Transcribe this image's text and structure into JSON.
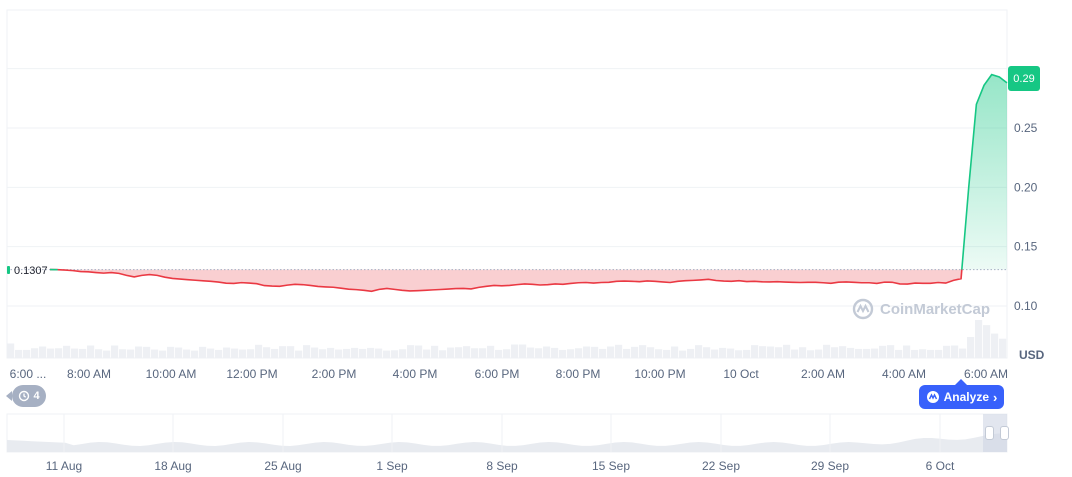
{
  "chart_data": {
    "type": "area",
    "currency_label": "USD",
    "current_price": "0.29",
    "reference_price": "0.1307",
    "ylim": [
      0.09,
      0.32
    ],
    "y_ticks": [
      "0.10",
      "0.15",
      "0.20",
      "0.25"
    ],
    "x_ticks": [
      "6:00 ...",
      "8:00 AM",
      "10:00 AM",
      "12:00 PM",
      "2:00 PM",
      "4:00 PM",
      "6:00 PM",
      "8:00 PM",
      "10:00 PM",
      "10 Oct",
      "2:00 AM",
      "4:00 AM",
      "6:00 AM"
    ],
    "nav_ticks": [
      "11 Aug",
      "18 Aug",
      "25 Aug",
      "1 Sep",
      "8 Sep",
      "15 Sep",
      "22 Sep",
      "29 Sep",
      "6 Oct"
    ],
    "series": [
      {
        "values": [
          0.1307,
          0.1306,
          0.1303,
          0.1298,
          0.129,
          0.1288,
          0.1282,
          0.1277,
          0.1282,
          0.1275,
          0.1258,
          0.1245,
          0.1258,
          0.1265,
          0.1258,
          0.1243,
          0.1232,
          0.1227,
          0.1222,
          0.1217,
          0.1212,
          0.1208,
          0.1202,
          0.1192,
          0.119,
          0.1197,
          0.1193,
          0.1188,
          0.1172,
          0.1168,
          0.1166,
          0.1176,
          0.1183,
          0.118,
          0.1173,
          0.1165,
          0.1161,
          0.1158,
          0.115,
          0.1142,
          0.1138,
          0.1132,
          0.1124,
          0.114,
          0.1148,
          0.114,
          0.1132,
          0.1127,
          0.1129,
          0.1132,
          0.1136,
          0.1139,
          0.1143,
          0.1147,
          0.1148,
          0.1144,
          0.1157,
          0.1166,
          0.1173,
          0.117,
          0.1173,
          0.118,
          0.1186,
          0.1183,
          0.1177,
          0.118,
          0.1186,
          0.1183,
          0.119,
          0.1196,
          0.1198,
          0.1193,
          0.1198,
          0.12,
          0.1208,
          0.121,
          0.1208,
          0.1205,
          0.1211,
          0.1208,
          0.1203,
          0.1198,
          0.1208,
          0.1213,
          0.1216,
          0.122,
          0.1225,
          0.1215,
          0.121,
          0.1208,
          0.1213,
          0.1206,
          0.1208,
          0.1204,
          0.1203,
          0.1205,
          0.1202,
          0.12,
          0.1198,
          0.12,
          0.12,
          0.1196,
          0.1191,
          0.1201,
          0.1203,
          0.12,
          0.1196,
          0.1196,
          0.119,
          0.1201,
          0.12,
          0.1186,
          0.1185,
          0.1193,
          0.1191,
          0.1191,
          0.1198,
          0.1193,
          0.1216,
          0.123,
          0.2,
          0.27,
          0.286,
          0.295,
          0.293,
          0.288
        ]
      }
    ],
    "volume_bars": [
      0.31,
      0.12,
      0.12,
      0.17,
      0.22,
      0.16,
      0.17,
      0.24,
      0.16,
      0.15,
      0.25,
      0.14,
      0.1,
      0.25,
      0.14,
      0.13,
      0.22,
      0.21,
      0.13,
      0.1,
      0.21,
      0.19,
      0.13,
      0.1,
      0.21,
      0.16,
      0.12,
      0.19,
      0.16,
      0.13,
      0.14,
      0.27,
      0.2,
      0.15,
      0.23,
      0.23,
      0.1,
      0.26,
      0.19,
      0.14,
      0.18,
      0.13,
      0.15,
      0.18,
      0.15,
      0.18,
      0.16,
      0.1,
      0.11,
      0.14,
      0.26,
      0.25,
      0.13,
      0.24,
      0.11,
      0.19,
      0.2,
      0.23,
      0.17,
      0.17,
      0.24,
      0.12,
      0.14,
      0.28,
      0.28,
      0.19,
      0.17,
      0.22,
      0.18,
      0.12,
      0.14,
      0.17,
      0.22,
      0.21,
      0.15,
      0.22,
      0.27,
      0.15,
      0.21,
      0.26,
      0.2,
      0.14,
      0.12,
      0.22,
      0.1,
      0.15,
      0.26,
      0.2,
      0.13,
      0.18,
      0.16,
      0.11,
      0.12,
      0.26,
      0.23,
      0.22,
      0.2,
      0.27,
      0.13,
      0.2,
      0.11,
      0.13,
      0.27,
      0.2,
      0.23,
      0.18,
      0.15,
      0.15,
      0.16,
      0.24,
      0.26,
      0.12,
      0.25,
      0.12,
      0.14,
      0.12,
      0.12,
      0.24,
      0.25,
      0.16,
      0.5,
      1.0,
      0.85,
      0.6,
      0.45
    ]
  },
  "watermark": {
    "text": "CoinMarketCap"
  },
  "history_pill": {
    "count": "4",
    "icon": "history-icon"
  },
  "analyze_button": {
    "label": "Analyze",
    "icon": "analyze-icon"
  },
  "colors": {
    "down": "#ea3943",
    "up": "#16c784",
    "accent": "#3861fb",
    "area_down": "#f8c3c6",
    "area_up": "#c9efdf"
  }
}
